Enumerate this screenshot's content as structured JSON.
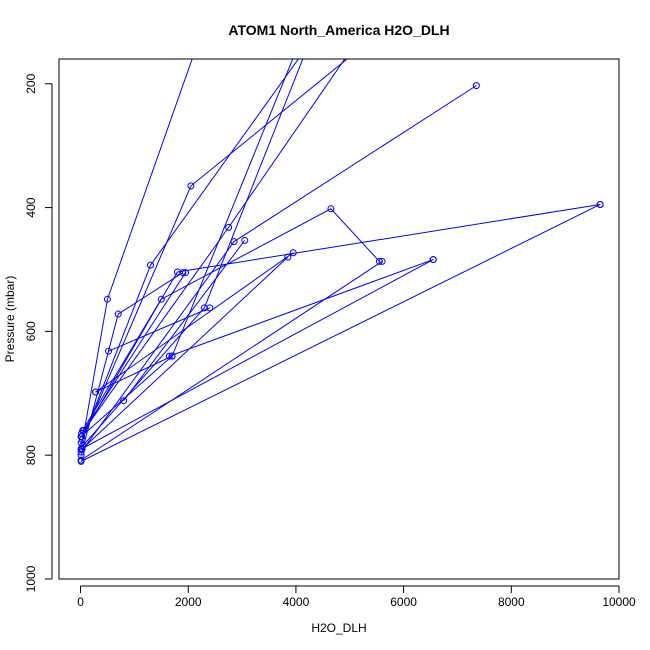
{
  "chart_data": {
    "type": "line",
    "title": "ATOM1 North_America H2O_DLH",
    "xlabel": "H2O_DLH",
    "ylabel": "Pressure (mbar)",
    "xlim": [
      -400,
      10000
    ],
    "ylim": [
      1000,
      160
    ],
    "y_inverted": true,
    "grid": false,
    "legend": "none",
    "xticks": [
      0,
      2000,
      4000,
      6000,
      8000,
      10000
    ],
    "yticks": [
      200,
      400,
      600,
      800,
      1000
    ],
    "line_color": "#0000ff",
    "series": [
      {
        "x": [
          10,
          500,
          2600
        ],
        "y": [
          790,
          548,
          30
        ]
      },
      {
        "x": [
          10,
          1300,
          5200
        ],
        "y": [
          780,
          493,
          20
        ]
      },
      {
        "x": [
          10,
          1700,
          4500
        ],
        "y": [
          770,
          640,
          40
        ]
      },
      {
        "x": [
          30,
          2050,
          5800
        ],
        "y": [
          775,
          365,
          100
        ]
      },
      {
        "x": [
          40,
          2300,
          4400
        ],
        "y": [
          785,
          562,
          100
        ]
      },
      {
        "x": [
          20,
          2750,
          5700
        ],
        "y": [
          765,
          432,
          60
        ]
      },
      {
        "x": [
          10,
          2850,
          7350
        ],
        "y": [
          795,
          455,
          203
        ]
      },
      {
        "x": [
          10,
          700,
          1900
        ],
        "y": [
          800,
          572,
          505
        ]
      },
      {
        "x": [
          20,
          1500,
          4650,
          5550
        ],
        "y": [
          770,
          548,
          402,
          487
        ]
      },
      {
        "x": [
          40,
          1800,
          9650
        ],
        "y": [
          760,
          504,
          395
        ]
      },
      {
        "x": [
          15,
          6550
        ],
        "y": [
          790,
          484
        ]
      },
      {
        "x": [
          10,
          9650
        ],
        "y": [
          810,
          395
        ]
      },
      {
        "x": [
          280,
          3950
        ],
        "y": [
          698,
          473
        ]
      },
      {
        "x": [
          800,
          3050
        ],
        "y": [
          712,
          453
        ]
      },
      {
        "x": [
          520,
          2400
        ],
        "y": [
          632,
          562
        ]
      },
      {
        "x": [
          10,
          5600
        ],
        "y": [
          808,
          487
        ]
      },
      {
        "x": [
          30,
          3850
        ],
        "y": [
          790,
          480
        ]
      },
      {
        "x": [
          60,
          1950
        ],
        "y": [
          760,
          505
        ]
      },
      {
        "x": [
          1650,
          6550
        ],
        "y": [
          640,
          484
        ]
      },
      {
        "x": [
          280,
          1700
        ],
        "y": [
          698,
          640
        ]
      }
    ]
  }
}
